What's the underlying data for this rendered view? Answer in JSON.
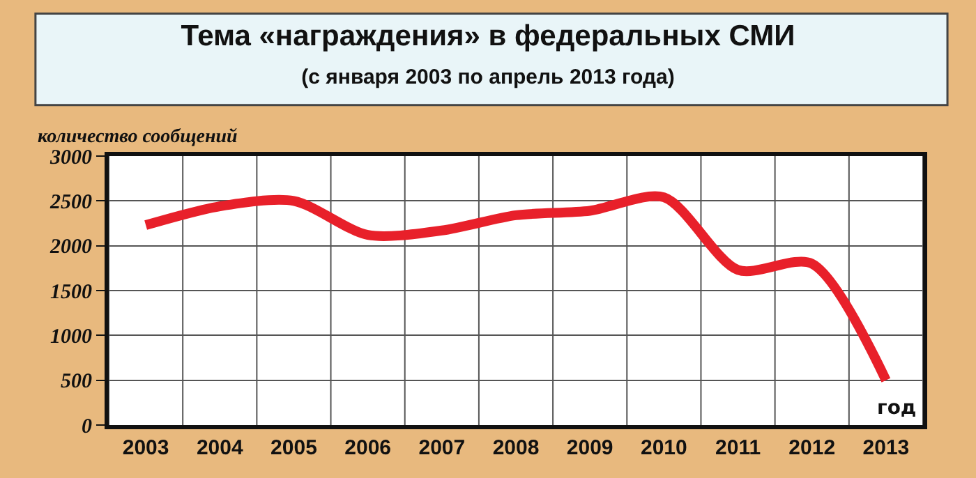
{
  "chart_data": {
    "type": "line",
    "title": "Тема «награждения» в федеральных СМИ",
    "subtitle": "(с января 2003 по апрель 2013 года)",
    "xlabel": "год",
    "ylabel": "количество сообщений",
    "categories": [
      "2003",
      "2004",
      "2005",
      "2006",
      "2007",
      "2008",
      "2009",
      "2010",
      "2011",
      "2012",
      "2013"
    ],
    "series": [
      {
        "color": "#e8202a",
        "values": [
          2230,
          2440,
          2500,
          2120,
          2170,
          2340,
          2390,
          2540,
          1730,
          1800,
          500
        ]
      }
    ],
    "ylim": [
      0,
      3000
    ],
    "yticks": [
      0,
      500,
      1000,
      1500,
      2000,
      2500,
      3000
    ],
    "grid": true,
    "marker": "none",
    "line_style": "solid"
  }
}
